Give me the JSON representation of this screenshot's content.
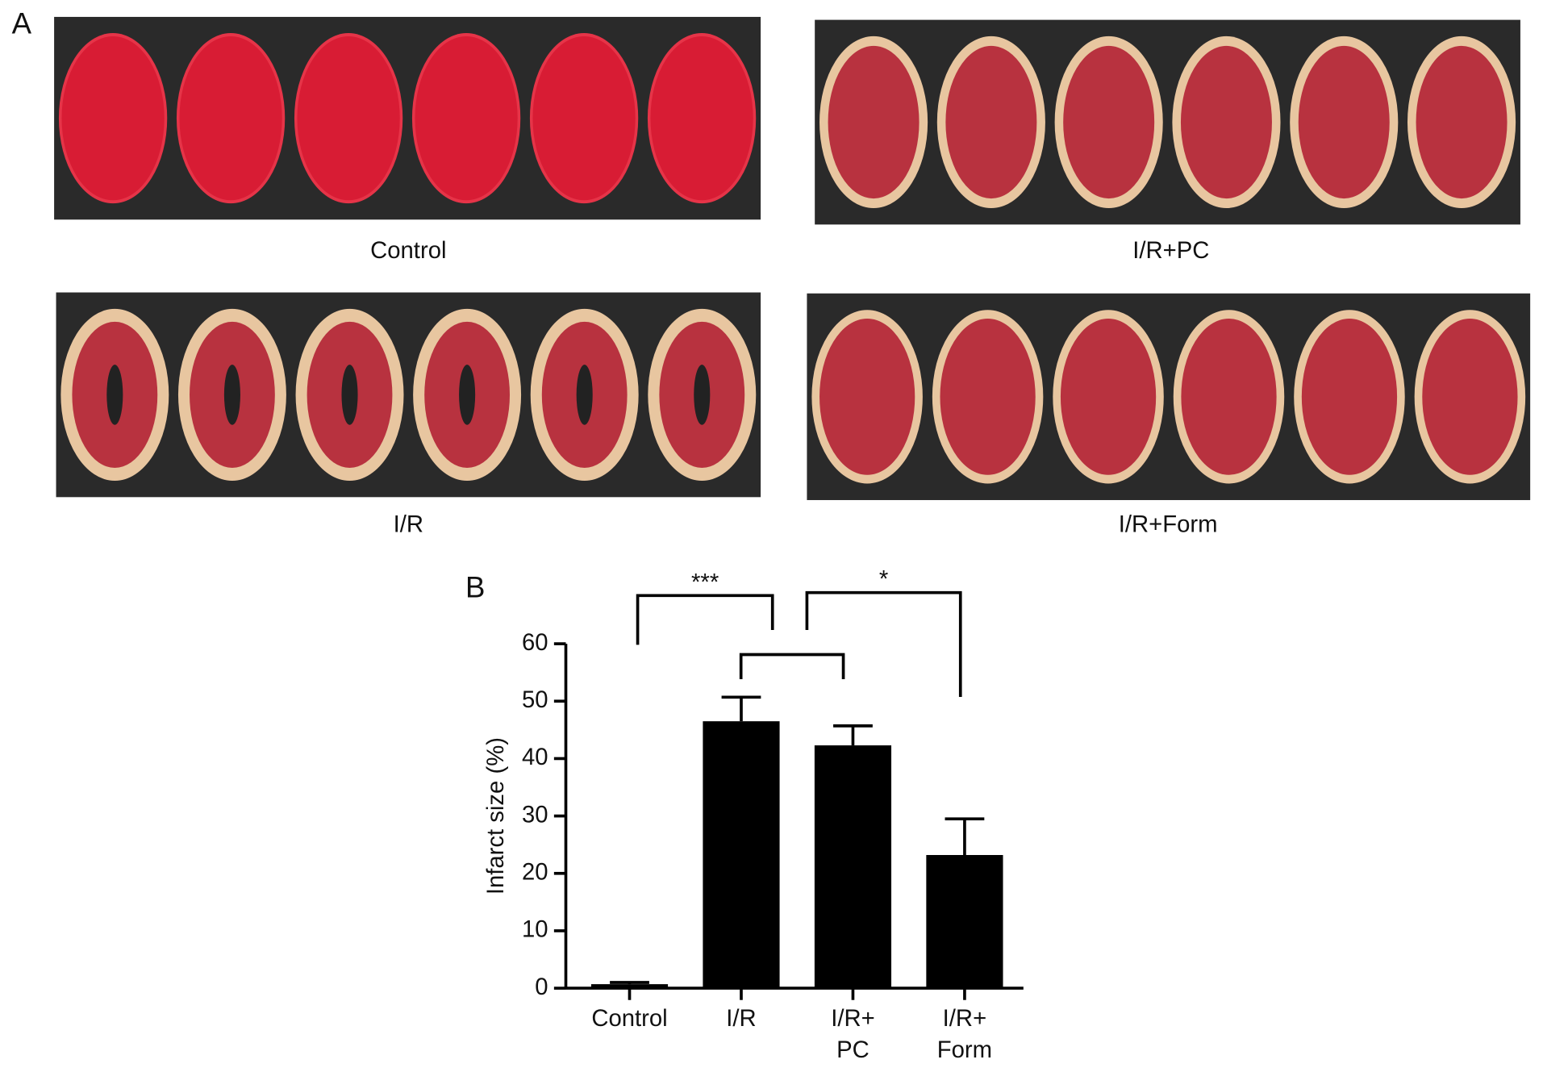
{
  "panels": {
    "a": "A",
    "b": "B"
  },
  "photos": {
    "captions": [
      "Control",
      "I/R+PC",
      "I/R",
      "I/R+Form"
    ]
  },
  "chart_data": {
    "type": "bar",
    "ylabel": "Infarct size (%)",
    "categories": [
      "Control",
      "I/R",
      "I/R+\nPC",
      "I/R+\nForm"
    ],
    "values": [
      0.7,
      46.5,
      42.3,
      23.2
    ],
    "errors": [
      0.3,
      4.2,
      3.4,
      6.3
    ],
    "color": "#000000",
    "ylim": [
      0,
      60
    ],
    "yticks": [
      0,
      10,
      20,
      30,
      40,
      50,
      60
    ],
    "grid": false,
    "brackets": [
      {
        "label": "***",
        "between": [
          0,
          1
        ]
      },
      {
        "between": [
          1,
          2
        ]
      },
      {
        "label": "*",
        "between": [
          2,
          3
        ]
      }
    ]
  }
}
